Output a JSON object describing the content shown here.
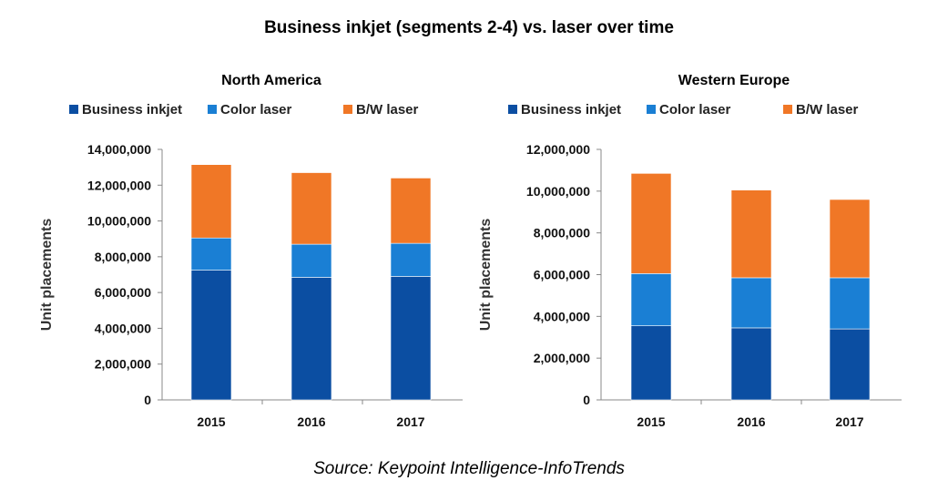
{
  "title": "Business inkjet (segments 2-4) vs. laser over time",
  "source": "Source: Keypoint Intelligence-InfoTrends",
  "colors": {
    "business_inkjet": "#0B4EA2",
    "color_laser": "#1A7FD4",
    "bw_laser": "#F07726"
  },
  "chart_data": [
    {
      "type": "bar",
      "stacked": true,
      "title": "North America",
      "ylabel": "Unit placements",
      "xlabel": "",
      "categories": [
        "2015",
        "2016",
        "2017"
      ],
      "ylim": [
        0,
        14000000
      ],
      "yticks": [
        0,
        2000000,
        4000000,
        6000000,
        8000000,
        10000000,
        12000000,
        14000000
      ],
      "ytick_labels": [
        "0",
        "2,000,000",
        "4,000,000",
        "6,000,000",
        "8,000,000",
        "10,000,000",
        "12,000,000",
        "14,000,000"
      ],
      "legend": "top",
      "series": [
        {
          "name": "Business inkjet",
          "color": "#0B4EA2",
          "values": [
            7250000,
            6850000,
            6900000
          ]
        },
        {
          "name": "Color laser",
          "color": "#1A7FD4",
          "values": [
            1800000,
            1850000,
            1850000
          ]
        },
        {
          "name": "B/W laser",
          "color": "#F07726",
          "values": [
            4100000,
            4000000,
            3650000
          ]
        }
      ]
    },
    {
      "type": "bar",
      "stacked": true,
      "title": "Western Europe",
      "ylabel": "Unit placements",
      "xlabel": "",
      "categories": [
        "2015",
        "2016",
        "2017"
      ],
      "ylim": [
        0,
        12000000
      ],
      "yticks": [
        0,
        2000000,
        4000000,
        6000000,
        8000000,
        10000000,
        12000000
      ],
      "ytick_labels": [
        "0",
        "2,000,000",
        "4,000,000",
        "6,000,000",
        "8,000,000",
        "10,000,000",
        "12,000,000"
      ],
      "legend": "top",
      "series": [
        {
          "name": "Business inkjet",
          "color": "#0B4EA2",
          "values": [
            3550000,
            3450000,
            3400000
          ]
        },
        {
          "name": "Color laser",
          "color": "#1A7FD4",
          "values": [
            2500000,
            2400000,
            2450000
          ]
        },
        {
          "name": "B/W laser",
          "color": "#F07726",
          "values": [
            4800000,
            4200000,
            3750000
          ]
        }
      ]
    }
  ]
}
